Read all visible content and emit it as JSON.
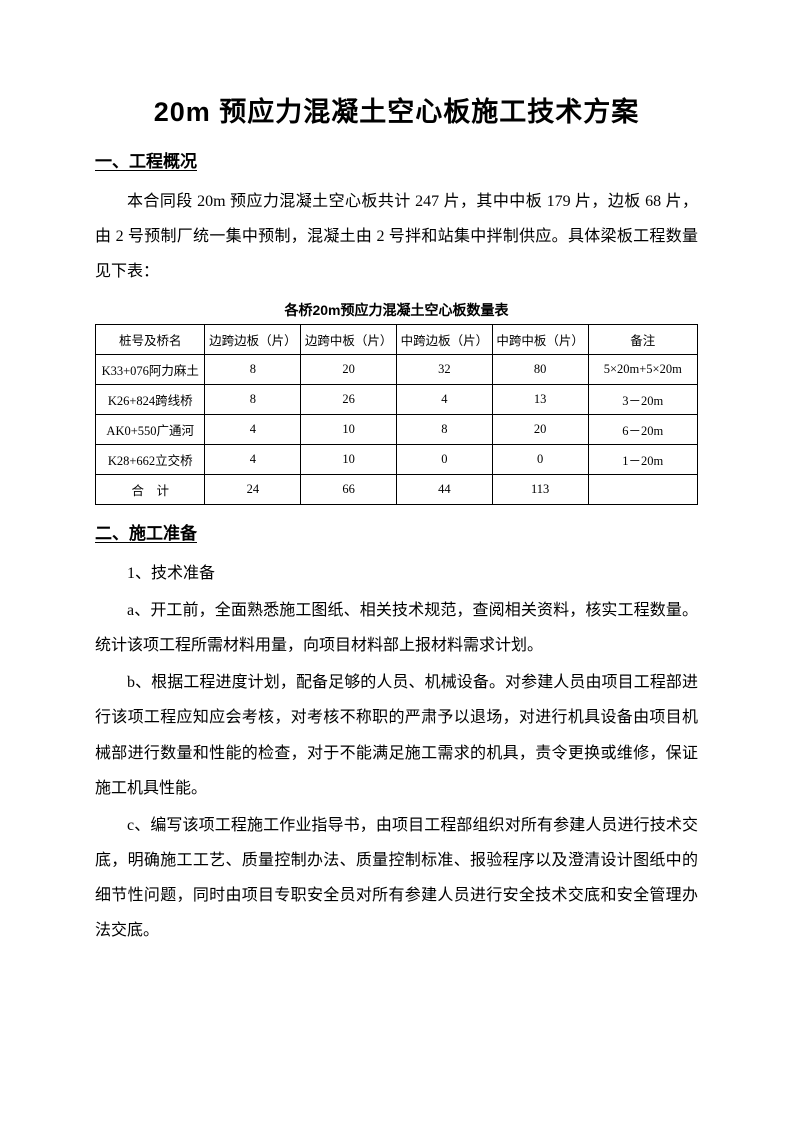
{
  "title": "20m 预应力混凝土空心板施工技术方案",
  "section1": {
    "heading": "一、工程概况",
    "para": "本合同段 20m 预应力混凝土空心板共计 247 片，其中中板 179 片，边板 68 片，由 2 号预制厂统一集中预制，混凝土由 2 号拌和站集中拌制供应。具体梁板工程数量见下表："
  },
  "table": {
    "caption": "各桥20m预应力混凝土空心板数量表",
    "columns": [
      "桩号及桥名",
      "边跨边板（片）",
      "边跨中板（片）",
      "中跨边板（片）",
      "中跨中板（片）",
      "备注"
    ],
    "rows": [
      [
        "K33+076阿力麻土",
        "8",
        "20",
        "32",
        "80",
        "5×20m+5×20m"
      ],
      [
        "K26+824跨线桥",
        "8",
        "26",
        "4",
        "13",
        "3－20m"
      ],
      [
        "AK0+550广通河",
        "4",
        "10",
        "8",
        "20",
        "6－20m"
      ],
      [
        "K28+662立交桥",
        "4",
        "10",
        "0",
        "0",
        "1－20m"
      ],
      [
        "合　计",
        "24",
        "66",
        "44",
        "113",
        ""
      ]
    ]
  },
  "section2": {
    "heading": "二、施工准备",
    "item1_title": "1、技术准备",
    "item_a": "a、开工前，全面熟悉施工图纸、相关技术规范，查阅相关资料，核实工程数量。统计该项工程所需材料用量，向项目材料部上报材料需求计划。",
    "item_b": "b、根据工程进度计划，配备足够的人员、机械设备。对参建人员由项目工程部进行该项工程应知应会考核，对考核不称职的严肃予以退场，对进行机具设备由项目机械部进行数量和性能的检查，对于不能满足施工需求的机具，责令更换或维修，保证施工机具性能。",
    "item_c": "c、编写该项工程施工作业指导书，由项目工程部组织对所有参建人员进行技术交底，明确施工工艺、质量控制办法、质量控制标准、报验程序以及澄清设计图纸中的细节性问题，同时由项目专职安全员对所有参建人员进行安全技术交底和安全管理办法交底。"
  }
}
